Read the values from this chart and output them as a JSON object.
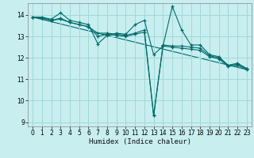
{
  "xlabel": "Humidex (Indice chaleur)",
  "bg_color": "#c8eef0",
  "line_color": "#006b6b",
  "grid_color": "#a0d8d8",
  "xlim": [
    -0.5,
    23.5
  ],
  "ylim": [
    8.8,
    14.55
  ],
  "yticks": [
    9,
    10,
    11,
    12,
    13,
    14
  ],
  "xticks": [
    0,
    1,
    2,
    3,
    4,
    5,
    6,
    7,
    8,
    9,
    10,
    11,
    12,
    13,
    14,
    15,
    16,
    17,
    18,
    19,
    20,
    21,
    22,
    23
  ],
  "series": [
    {
      "x": [
        0,
        1,
        2,
        3,
        4,
        5,
        6,
        7,
        8,
        9,
        10,
        11,
        12,
        13,
        14,
        15,
        16,
        17,
        18,
        19,
        20,
        21,
        22,
        23
      ],
      "y": [
        13.9,
        13.9,
        13.8,
        14.1,
        13.75,
        13.65,
        13.55,
        12.65,
        13.05,
        13.15,
        13.1,
        13.55,
        13.75,
        12.15,
        12.55,
        14.4,
        13.3,
        12.6,
        12.6,
        12.15,
        12.05,
        11.65,
        11.75,
        11.5
      ]
    },
    {
      "x": [
        0,
        1,
        2,
        3,
        4,
        5,
        6,
        7,
        8,
        9,
        10,
        11,
        12,
        13,
        14,
        15,
        16,
        17,
        18,
        19,
        20,
        21,
        22,
        23
      ],
      "y": [
        13.9,
        13.85,
        13.75,
        13.85,
        13.65,
        13.55,
        13.45,
        13.15,
        13.15,
        13.1,
        13.05,
        13.15,
        13.3,
        9.3,
        12.6,
        12.55,
        12.55,
        12.5,
        12.45,
        12.1,
        12.0,
        11.65,
        11.7,
        11.5
      ]
    },
    {
      "x": [
        0,
        1,
        2,
        3,
        4,
        5,
        6,
        7,
        8,
        9,
        10,
        11,
        12,
        13,
        14,
        15,
        16,
        17,
        18,
        19,
        20,
        21,
        22,
        23
      ],
      "y": [
        13.9,
        13.85,
        13.75,
        13.8,
        13.65,
        13.55,
        13.45,
        13.0,
        13.1,
        13.05,
        13.0,
        13.1,
        13.2,
        9.3,
        12.55,
        12.5,
        12.45,
        12.4,
        12.35,
        12.05,
        11.95,
        11.6,
        11.65,
        11.45
      ]
    },
    {
      "x": [
        0,
        23
      ],
      "y": [
        13.9,
        11.45
      ]
    }
  ]
}
